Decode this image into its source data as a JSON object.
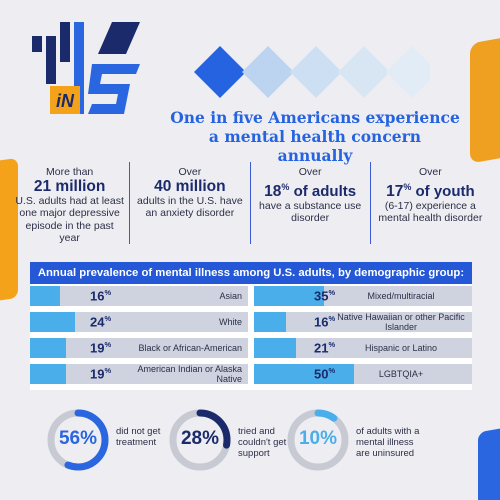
{
  "logo": {
    "one": "1",
    "five": "5",
    "in": "iN"
  },
  "headline": "One in five Americans experience a mental health concern annually",
  "stats": [
    {
      "pre": "More than",
      "big_num": "21 million",
      "big_pct": "",
      "big_tail": "",
      "desc": "U.S. adults had at least one major depressive episode in the past year"
    },
    {
      "pre": "Over",
      "big_num": "40 million",
      "big_pct": "",
      "big_tail": "",
      "desc": "adults in the U.S. have an anxiety disorder"
    },
    {
      "pre": "Over",
      "big_num": "18",
      "big_pct": "%",
      "big_tail": " of adults",
      "desc": "have a substance use disorder"
    },
    {
      "pre": "Over",
      "big_num": "17",
      "big_pct": "%",
      "big_tail": " of youth",
      "desc": "(6-17) experience a mental health disorder"
    }
  ],
  "panel": {
    "title": "Annual prevalence of mental illness among U.S. adults, by demographic group:",
    "left": [
      {
        "value": 16,
        "label": "Asian"
      },
      {
        "value": 24,
        "label": "White"
      },
      {
        "value": 19,
        "label": "Black or African-American"
      },
      {
        "value": 19,
        "label": "American Indian or Alaska Native"
      }
    ],
    "right": [
      {
        "value": 35,
        "label": "Mixed/multiracial"
      },
      {
        "value": 16,
        "label": "Native Hawaiian or other Pacific Islander"
      },
      {
        "value": 21,
        "label": "Hispanic or Latino"
      },
      {
        "value": 50,
        "label": "LGBTQIA+"
      }
    ],
    "pct_symbol": "%"
  },
  "donuts": [
    {
      "value": 56,
      "text": "56%",
      "label": "did not get treatment",
      "color": "#2a66e0"
    },
    {
      "value": 28,
      "text": "28%",
      "label": "tried and couldn't get support",
      "color": "#1b2a6b"
    },
    {
      "value": 10,
      "text": "10%",
      "label": "of adults with a mental illness are uninsured",
      "color": "#4aaeea"
    }
  ],
  "colors": {
    "primary_blue": "#2458d6",
    "light_blue": "#4aaeea",
    "navy": "#1b2a6b",
    "orange": "#f4a21a",
    "bar_track": "#cfd3e0",
    "donut_track": "#c8cad3"
  }
}
